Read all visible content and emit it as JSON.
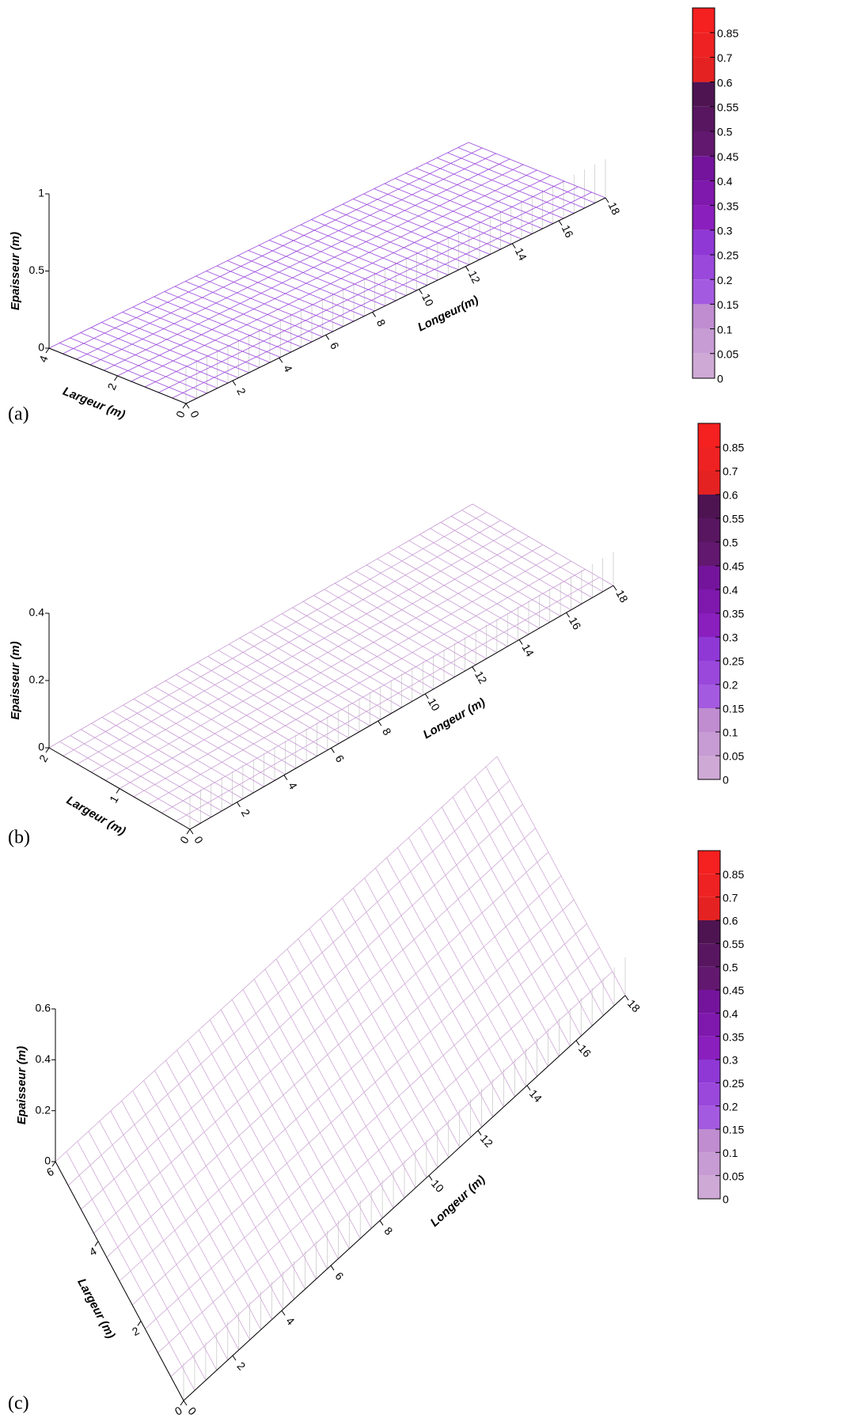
{
  "panels": [
    {
      "label": "(a)",
      "z_label": "Epaisseur  (m)",
      "z_ticks": [
        0,
        0.5,
        1
      ],
      "width_label": "Largeur (m)",
      "width_ticks": [
        0,
        2,
        4
      ],
      "length_label": "Longeur(m)",
      "length_ticks": [
        0,
        2,
        4,
        6,
        8,
        10,
        12,
        14,
        16,
        18
      ],
      "colorbar": {
        "ticks": [
          0,
          0.05,
          0.1,
          0.15,
          0.2,
          0.25,
          0.3,
          0.35,
          0.4,
          0.45,
          0.5,
          0.55,
          0.6,
          0.7,
          0.85
        ],
        "colors": [
          "#cfa9d6",
          "#c79bd3",
          "#bf8dd0",
          "#a45ae0",
          "#9a48dc",
          "#8f38d6",
          "#8a1fbd",
          "#7f18ad",
          "#74149c",
          "#62186f",
          "#581660",
          "#4e1452",
          "#e52222",
          "#ee2222",
          "#f52020"
        ]
      }
    },
    {
      "label": "(b)",
      "z_label": "Epaisseur (m)",
      "z_ticks": [
        0,
        0.2,
        0.4
      ],
      "width_label": "Largeur (m)",
      "width_ticks": [
        0,
        1,
        2
      ],
      "length_label": "Longeur (m)",
      "length_ticks": [
        0,
        2,
        4,
        6,
        8,
        10,
        12,
        14,
        16,
        18
      ],
      "colorbar": {
        "ticks": [
          0,
          0.05,
          0.1,
          0.15,
          0.2,
          0.25,
          0.3,
          0.35,
          0.4,
          0.45,
          0.5,
          0.55,
          0.6,
          0.7,
          0.85
        ],
        "colors": [
          "#cfa9d6",
          "#c79bd3",
          "#bf8dd0",
          "#a45ae0",
          "#9a48dc",
          "#8f38d6",
          "#8a1fbd",
          "#7f18ad",
          "#74149c",
          "#62186f",
          "#581660",
          "#4e1452",
          "#e52222",
          "#ee2222",
          "#f52020"
        ]
      }
    },
    {
      "label": "(c)",
      "z_label": "Epaisseur (m)",
      "z_ticks": [
        0,
        0.2,
        0.4,
        0.6
      ],
      "width_label": "Largeur (m)",
      "width_ticks": [
        0,
        2,
        4,
        6
      ],
      "length_label": "Longeur (m)",
      "length_ticks": [
        0,
        2,
        4,
        6,
        8,
        10,
        12,
        14,
        16,
        18
      ],
      "colorbar": {
        "ticks": [
          0,
          0.05,
          0.1,
          0.15,
          0.2,
          0.25,
          0.3,
          0.35,
          0.4,
          0.45,
          0.5,
          0.55,
          0.6,
          0.7,
          0.85
        ],
        "colors": [
          "#cfa9d6",
          "#c79bd3",
          "#bf8dd0",
          "#a45ae0",
          "#9a48dc",
          "#8f38d6",
          "#8a1fbd",
          "#7f18ad",
          "#74149c",
          "#62186f",
          "#581660",
          "#4e1452",
          "#e52222",
          "#ee2222",
          "#f52020"
        ]
      }
    }
  ]
}
